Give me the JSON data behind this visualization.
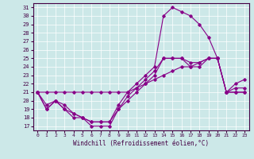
{
  "xlabel": "Windchill (Refroidissement éolien,°C)",
  "background_color": "#cce8e8",
  "line_color": "#880088",
  "label_color": "#440044",
  "xlim": [
    -0.5,
    23.5
  ],
  "ylim": [
    16.5,
    31.5
  ],
  "yticks": [
    17,
    18,
    19,
    20,
    21,
    22,
    23,
    24,
    25,
    26,
    27,
    28,
    29,
    30,
    31
  ],
  "xticks": [
    0,
    1,
    2,
    3,
    4,
    5,
    6,
    7,
    8,
    9,
    10,
    11,
    12,
    13,
    14,
    15,
    16,
    17,
    18,
    19,
    20,
    21,
    22,
    23
  ],
  "x": [
    0,
    1,
    2,
    3,
    4,
    5,
    6,
    7,
    8,
    9,
    10,
    11,
    12,
    13,
    14,
    15,
    16,
    17,
    18,
    19,
    20,
    21,
    22,
    23
  ],
  "wc_y": [
    21,
    19,
    20,
    19,
    18,
    18,
    17,
    17,
    17,
    19,
    20,
    21,
    22,
    23,
    25,
    25,
    25,
    24,
    24,
    25,
    25,
    21,
    21,
    21
  ],
  "t_y": [
    21,
    21,
    21,
    21,
    21,
    21,
    21,
    21,
    21,
    21,
    21,
    21.5,
    22,
    22.5,
    23,
    23.5,
    24,
    24,
    24.5,
    25,
    25,
    21,
    21,
    21
  ],
  "up_y": [
    21,
    19.5,
    20,
    19.5,
    18.5,
    18,
    17.5,
    17.5,
    17.5,
    19.5,
    21,
    22,
    23,
    24,
    30,
    31,
    30.5,
    30,
    29,
    27.5,
    25,
    21,
    22,
    22.5
  ],
  "mid_y": [
    21,
    19,
    20,
    19,
    18.5,
    18,
    17.5,
    17.5,
    17.5,
    19,
    20.5,
    21.5,
    22.5,
    23.5,
    25,
    25,
    25,
    24.5,
    24.5,
    25,
    25,
    21,
    21.5,
    21.5
  ]
}
